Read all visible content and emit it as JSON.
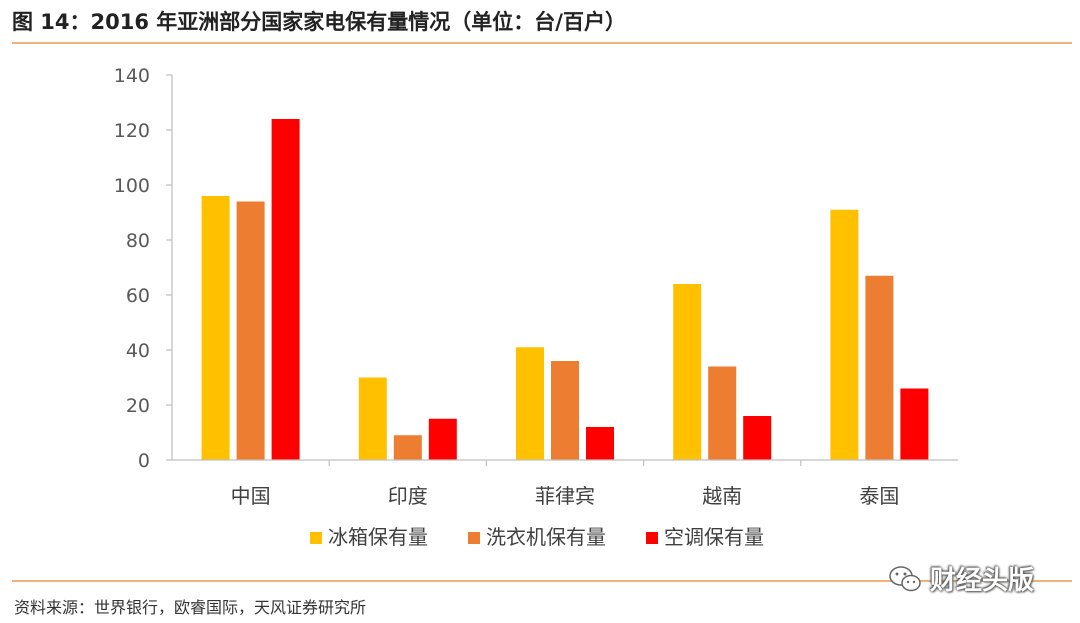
{
  "figure": {
    "title": "图 14：2016 年亚洲部分国家家电保有量情况（单位：台/百户）",
    "source": "资料来源：世界银行，欧睿国际，天风证券研究所",
    "watermark": "财经头版"
  },
  "chart_data": {
    "type": "bar",
    "title": "",
    "xlabel": "",
    "ylabel": "",
    "categories": [
      "中国",
      "印度",
      "菲律宾",
      "越南",
      "泰国"
    ],
    "series": [
      {
        "name": "冰箱保有量",
        "color": "#FFC000",
        "values": [
          96,
          30,
          41,
          64,
          91
        ]
      },
      {
        "name": "洗衣机保有量",
        "color": "#ED7D31",
        "values": [
          94,
          9,
          36,
          34,
          67
        ]
      },
      {
        "name": "空调保有量",
        "color": "#FF0000",
        "values": [
          124,
          15,
          12,
          16,
          26
        ]
      }
    ],
    "ylim": [
      0,
      140
    ],
    "yticks": [
      0,
      20,
      40,
      60,
      80,
      100,
      120,
      140
    ],
    "grid": false,
    "legend_position": "bottom"
  }
}
